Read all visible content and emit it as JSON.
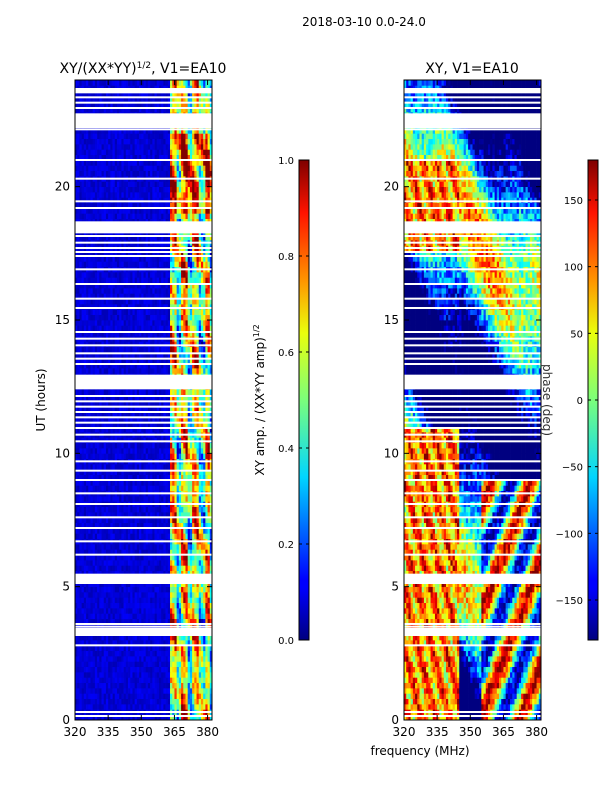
{
  "suptitle": "2018-03-10 0.0-24.0",
  "chart_data": [
    {
      "type": "heatmap",
      "title_prefix": "XY/(XX*YY)",
      "title_exponent": "1/2",
      "title_suffix": ", V1=EA10",
      "xlabel": "",
      "ylabel": "UT (hours)",
      "xlim": [
        320,
        382
      ],
      "ylim": [
        0,
        24
      ],
      "xticks": [
        "320",
        "335",
        "350",
        "365",
        "380"
      ],
      "xtick_values": [
        320,
        335,
        350,
        365,
        380
      ],
      "yticks": [
        "0",
        "5",
        "10",
        "15",
        "20"
      ],
      "ytick_values": [
        0,
        5,
        10,
        15,
        20
      ],
      "colorbar": {
        "label_prefix": "XY amp. / (XX*YY amp)",
        "label_exponent": "1/2",
        "ticks": [
          "0.0",
          "0.2",
          "0.4",
          "0.6",
          "0.8",
          "1.0"
        ],
        "tick_values": [
          0.0,
          0.2,
          0.4,
          0.6,
          0.8,
          1.0
        ],
        "range": [
          0.0,
          1.0
        ],
        "colormap": "jet"
      }
    },
    {
      "type": "heatmap",
      "title": "XY, V1=EA10",
      "xlabel": "frequency (MHz)",
      "ylabel": "",
      "xlim": [
        320,
        382
      ],
      "ylim": [
        0,
        24
      ],
      "xticks": [
        "320",
        "335",
        "350",
        "365",
        "380"
      ],
      "xtick_values": [
        320,
        335,
        350,
        365,
        380
      ],
      "yticks": [
        "0",
        "5",
        "10",
        "15",
        "20"
      ],
      "ytick_values": [
        0,
        5,
        10,
        15,
        20
      ],
      "colorbar": {
        "label": "phase (deg)",
        "ticks": [
          "−150",
          "−100",
          "−50",
          "0",
          "50",
          "100",
          "150"
        ],
        "tick_values": [
          -150,
          -100,
          -50,
          0,
          50,
          100,
          150
        ],
        "range": [
          -180,
          180
        ],
        "colormap": "jet"
      }
    }
  ],
  "flagged_hours": [
    0.15,
    0.3,
    2.8,
    3.2,
    3.35,
    3.5,
    3.6,
    5.15,
    5.3,
    5.45,
    6.2,
    6.7,
    7.2,
    7.6,
    8.1,
    8.5,
    9.0,
    9.35,
    9.7,
    10.45,
    10.7,
    10.95,
    11.15,
    11.35,
    11.55,
    11.75,
    11.95,
    12.15,
    12.5,
    12.65,
    12.8,
    13.35,
    13.55,
    13.75,
    14.05,
    14.3,
    14.55,
    15.45,
    15.8,
    16.35,
    16.9,
    17.4,
    17.55,
    17.7,
    17.9,
    18.15,
    18.3,
    18.45,
    18.6,
    19.2,
    19.45,
    20.3,
    21.0,
    22.15,
    22.3,
    22.5,
    22.65,
    22.95,
    23.15,
    23.35,
    23.6
  ],
  "flagged_bands": [
    [
      12.4,
      12.95
    ],
    [
      18.25,
      18.7
    ],
    [
      22.2,
      22.75
    ],
    [
      23.5,
      23.7
    ],
    [
      3.15,
      3.45
    ],
    [
      5.1,
      5.45
    ]
  ]
}
